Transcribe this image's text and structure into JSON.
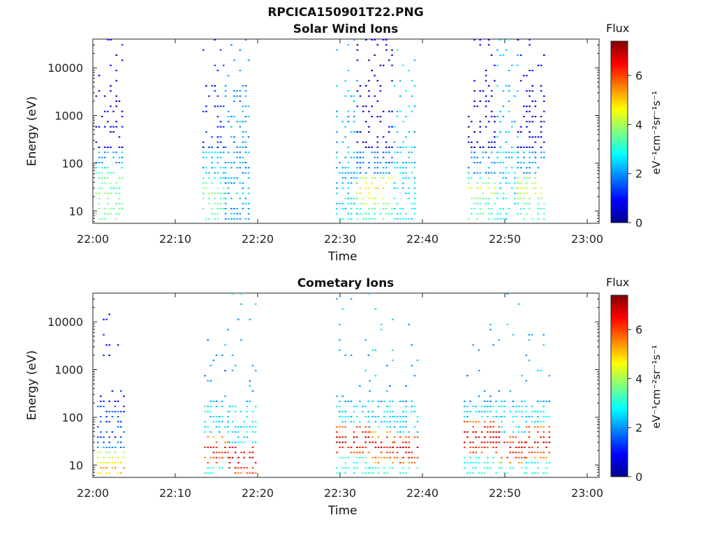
{
  "figure_title": "RPCICA150901T22.PNG",
  "colorbar": {
    "title": "Flux",
    "label": "eV⁻¹cm⁻²sr⁻¹s⁻¹",
    "ticks": [
      "0",
      "2",
      "4",
      "6"
    ],
    "range": [
      0,
      7.4
    ],
    "colormap": "jet"
  },
  "chart_data": [
    {
      "type": "heatmap",
      "title": "Solar Wind Ions",
      "xlabel": "Time",
      "ylabel": "Energy (eV)",
      "xticks": [
        "22:00",
        "22:10",
        "22:20",
        "22:30",
        "22:40",
        "22:50",
        "23:00"
      ],
      "yticks": [
        "10",
        "100",
        "1000",
        "10000"
      ],
      "ylog": true,
      "ylim": [
        5.5,
        40000
      ],
      "xlim_minutes": [
        0,
        62
      ],
      "bursts": [
        {
          "start_min": 0.3,
          "end_min": 3.7,
          "low_flux": 3.6,
          "high_flux": 0.7,
          "peak_energy": 40,
          "peak_flux": 3.8
        },
        {
          "start_min": 13.3,
          "end_min": 16.0,
          "low_flux": 3.5,
          "high_flux": 1.2,
          "peak_energy": 25,
          "peak_flux": 3.9
        },
        {
          "start_min": 16.0,
          "end_min": 19.0,
          "low_flux": 2.2,
          "high_flux": 2.0,
          "peak_energy": 0,
          "peak_flux": 0
        },
        {
          "start_min": 29.5,
          "end_min": 32.0,
          "low_flux": 2.5,
          "high_flux": 2.2,
          "peak_energy": 0,
          "peak_flux": 0
        },
        {
          "start_min": 32.0,
          "end_min": 36.5,
          "low_flux": 3.2,
          "high_flux": 0.6,
          "peak_energy": 25,
          "peak_flux": 5.0
        },
        {
          "start_min": 36.5,
          "end_min": 39.0,
          "low_flux": 2.6,
          "high_flux": 2.4,
          "peak_energy": 0,
          "peak_flux": 0
        },
        {
          "start_min": 45.5,
          "end_min": 49.0,
          "low_flux": 3.3,
          "high_flux": 0.7,
          "peak_energy": 25,
          "peak_flux": 4.3
        },
        {
          "start_min": 49.0,
          "end_min": 51.5,
          "low_flux": 2.7,
          "high_flux": 2.3,
          "peak_energy": 0,
          "peak_flux": 0
        },
        {
          "start_min": 51.5,
          "end_min": 55.0,
          "low_flux": 3.3,
          "high_flux": 0.8,
          "peak_energy": 25,
          "peak_flux": 4.5
        }
      ]
    },
    {
      "type": "heatmap",
      "title": "Cometary Ions",
      "xlabel": "Time",
      "ylabel": "Energy (eV)",
      "xticks": [
        "22:00",
        "22:10",
        "22:20",
        "22:30",
        "22:40",
        "22:50",
        "23:00"
      ],
      "yticks": [
        "10",
        "100",
        "1000",
        "10000"
      ],
      "ylog": true,
      "ylim": [
        5.5,
        40000
      ],
      "xlim_minutes": [
        0,
        62
      ],
      "bursts": [
        {
          "start_min": 0.5,
          "end_min": 3.8,
          "low_flux": 2.0,
          "high_flux": 1.0,
          "peak_energy": 8,
          "peak_flux": 5.2
        },
        {
          "start_min": 13.5,
          "end_min": 16.5,
          "low_flux": 3.0,
          "high_flux": 2.0,
          "peak_energy": 18,
          "peak_flux": 6.5
        },
        {
          "start_min": 16.5,
          "end_min": 20.0,
          "low_flux": 3.0,
          "high_flux": 2.2,
          "peak_energy": 12,
          "peak_flux": 7.0
        },
        {
          "start_min": 29.5,
          "end_min": 33.5,
          "low_flux": 3.0,
          "high_flux": 2.2,
          "peak_energy": 30,
          "peak_flux": 7.0
        },
        {
          "start_min": 33.5,
          "end_min": 36.5,
          "low_flux": 3.0,
          "high_flux": 2.2,
          "peak_energy": 22,
          "peak_flux": 6.6
        },
        {
          "start_min": 36.5,
          "end_min": 39.5,
          "low_flux": 3.0,
          "high_flux": 2.2,
          "peak_energy": 20,
          "peak_flux": 6.8
        },
        {
          "start_min": 45.0,
          "end_min": 49.5,
          "low_flux": 3.0,
          "high_flux": 2.0,
          "peak_energy": 35,
          "peak_flux": 7.0
        },
        {
          "start_min": 49.5,
          "end_min": 52.5,
          "low_flux": 3.0,
          "high_flux": 2.2,
          "peak_energy": 20,
          "peak_flux": 6.6
        },
        {
          "start_min": 52.5,
          "end_min": 55.5,
          "low_flux": 3.0,
          "high_flux": 2.2,
          "peak_energy": 28,
          "peak_flux": 6.8
        }
      ]
    }
  ]
}
